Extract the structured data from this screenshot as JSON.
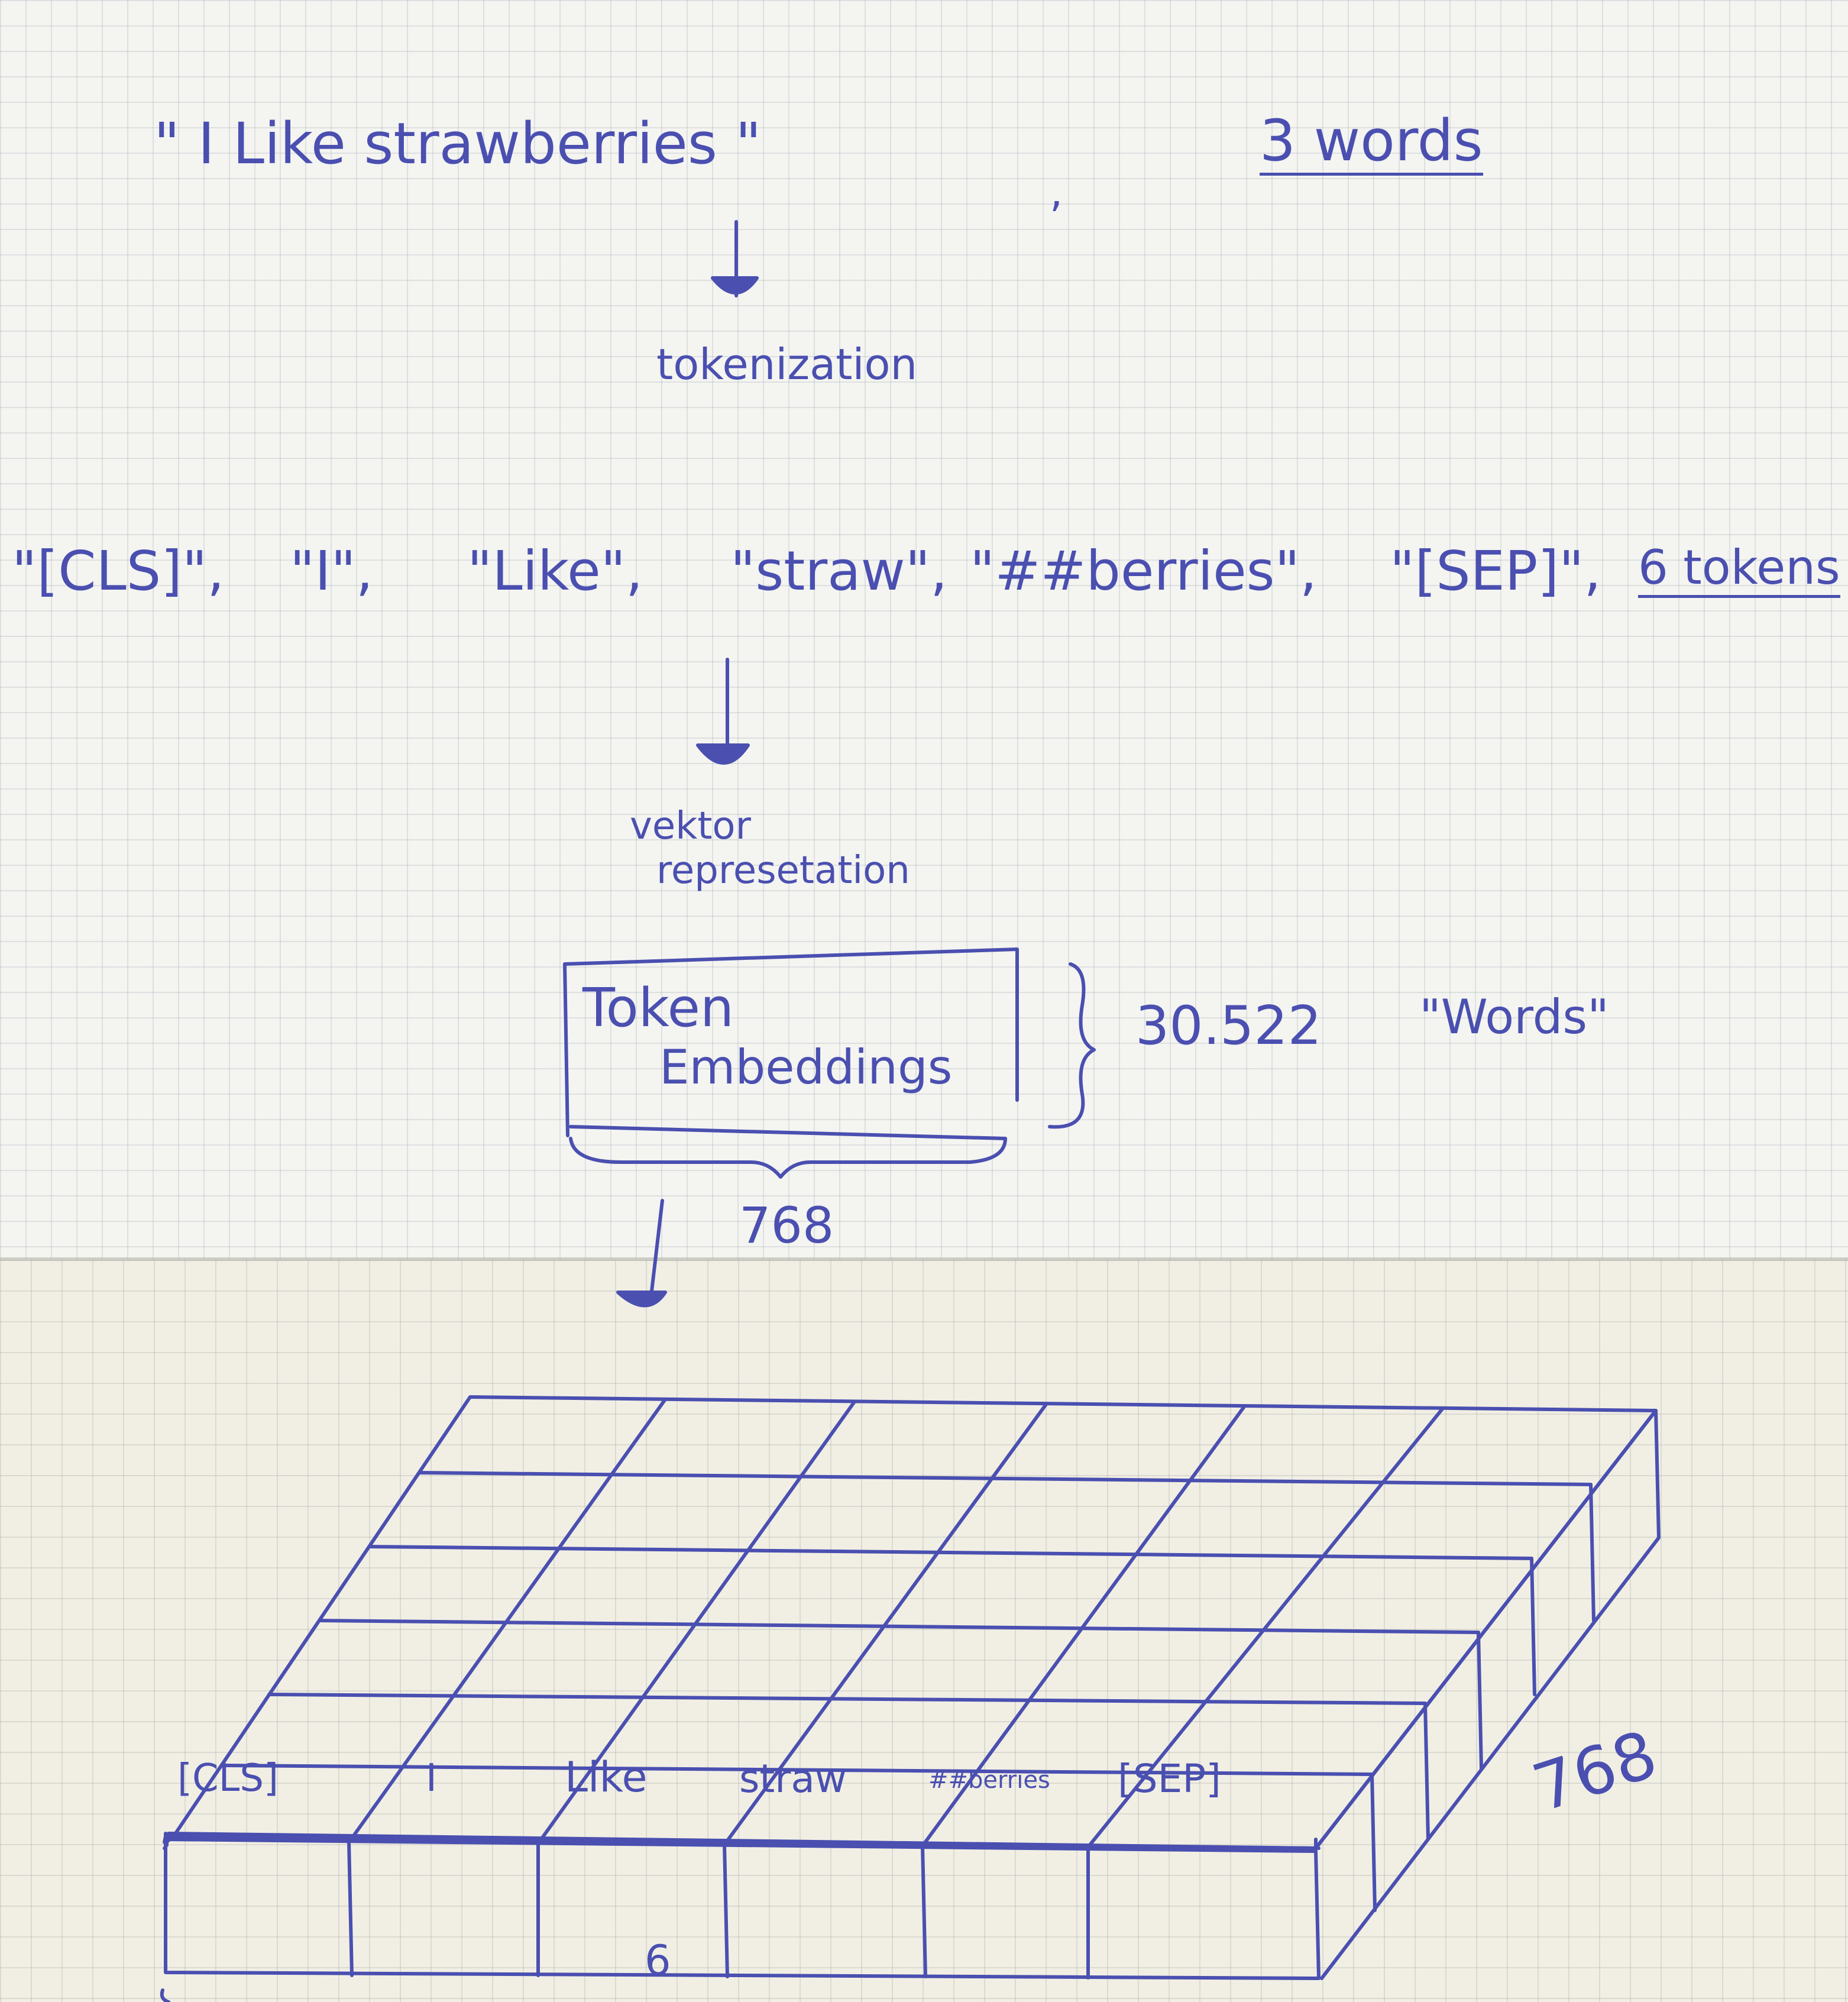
{
  "sentence": {
    "text": "\" I Like   strawberries \"",
    "word_count": "3 words"
  },
  "step1_label": "tokenization",
  "tokens_line": {
    "tokens": [
      "\"[CLS]\",",
      "\"I\",",
      "\"Like\",",
      "\"straw\",",
      "\"##berries\",",
      "\"[SEP]\","
    ],
    "token_count": "6 tokens"
  },
  "step2_label": {
    "line1": "vektor",
    "line2": "represetation"
  },
  "embedding_box": {
    "line1": "Token",
    "line2": "Embeddings",
    "vocab_size": "30.522",
    "vocab_unit": "\"Words\"",
    "width_dim": "768"
  },
  "tensor": {
    "cells": [
      "[CLS]",
      "I",
      "Like",
      "straw",
      "##berries",
      "[SEP]"
    ],
    "sequence_length": "6",
    "depth_dim": "768"
  },
  "colors": {
    "ink": "#4a4fb0",
    "paper_top": "#f4f4f1",
    "paper_bottom": "#f1efe4"
  }
}
